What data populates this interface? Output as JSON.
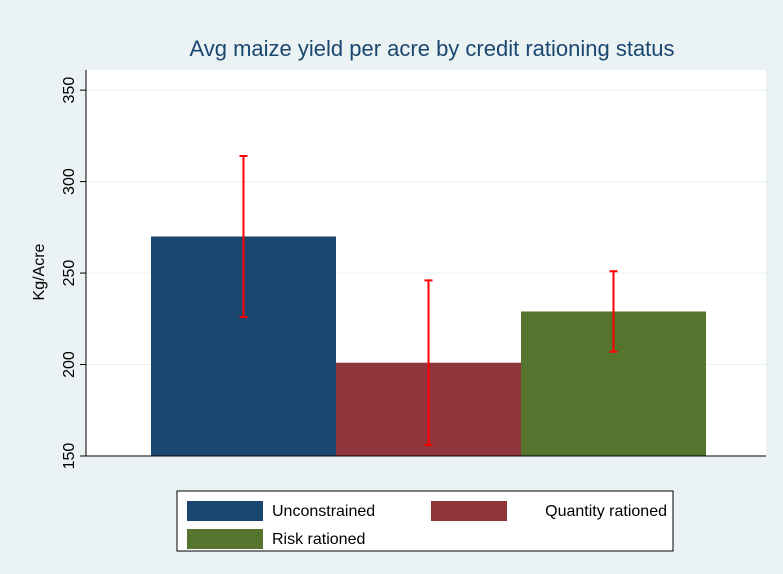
{
  "chart_data": {
    "type": "bar",
    "title": "Avg maize yield per acre by credit rationing status",
    "y_label": "Kg/Acre",
    "series": [
      {
        "name": "Unconstrained",
        "color": "#1a476f",
        "values": [
          270
        ],
        "errors": [
          44
        ]
      },
      {
        "name": "Quantity rationed",
        "color": "#90353b",
        "values": [
          201
        ],
        "errors": [
          45
        ]
      },
      {
        "name": "Risk rationed",
        "color": "#55752f",
        "values": [
          229
        ],
        "errors": [
          22
        ]
      }
    ],
    "error_color": "#ff0000",
    "ylim": [
      150,
      361
    ],
    "yticks": [
      150,
      200,
      250,
      300,
      350
    ],
    "grid": true,
    "legend": "bottom"
  }
}
